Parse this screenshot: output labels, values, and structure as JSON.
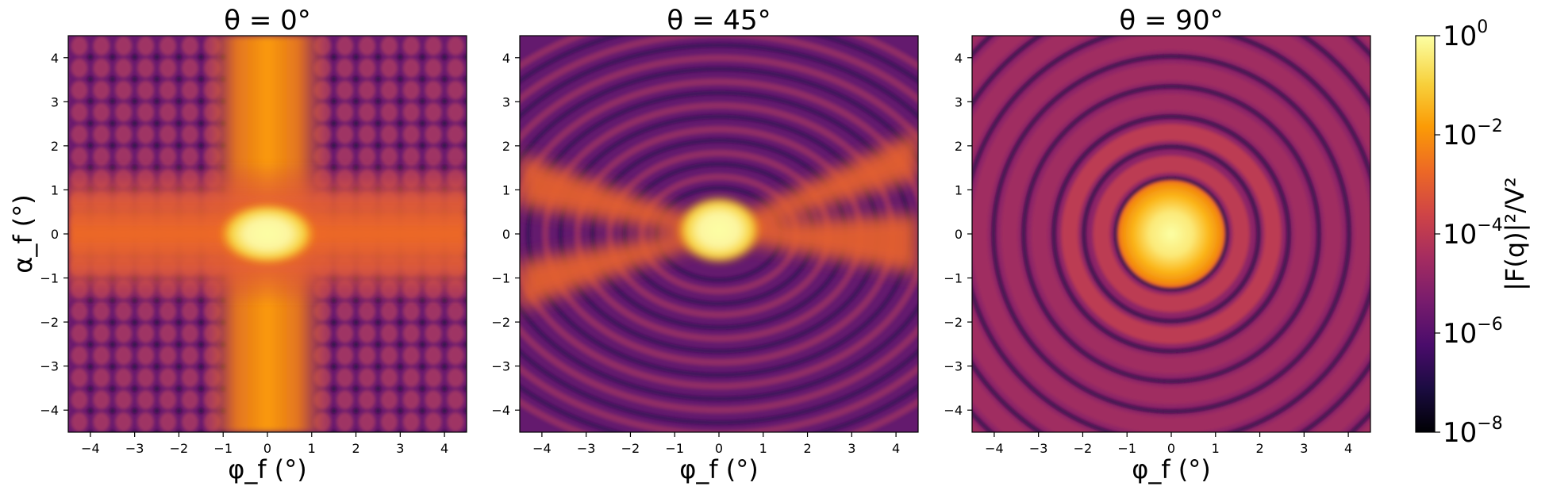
{
  "chart_data": [
    {
      "type": "heatmap",
      "panel": "theta-0",
      "title": "θ = 0°",
      "xlabel": "φ_f (°)",
      "ylabel": "α_f (°)",
      "xlim": [
        -4.5,
        4.5
      ],
      "ylim": [
        -4.5,
        4.5
      ],
      "xticks": [
        -4,
        -3,
        -2,
        -1,
        0,
        1,
        2,
        3,
        4
      ],
      "yticks": [
        -4,
        -3,
        -2,
        -1,
        0,
        1,
        2,
        3,
        4
      ],
      "pattern": "cross: bright vertical band along φf=0, horizontal band along αf=0, grid of lobes elsewhere; peak at origin",
      "colormap": "inferno",
      "grid": false
    },
    {
      "type": "heatmap",
      "panel": "theta-45",
      "title": "θ = 45°",
      "xlabel": "φ_f (°)",
      "ylabel": "",
      "xlim": [
        -4.5,
        4.5
      ],
      "ylim": [
        -4.5,
        4.5
      ],
      "xticks": [
        -4,
        -3,
        -2,
        -1,
        0,
        1,
        2,
        3,
        4
      ],
      "yticks": [
        -4,
        -3,
        -2,
        -1,
        0,
        1,
        2,
        3,
        4
      ],
      "pattern": "X-shaped streaks through origin with elliptical fringes above and below; peak at origin",
      "colormap": "inferno",
      "grid": false
    },
    {
      "type": "heatmap",
      "panel": "theta-90",
      "title": "θ = 90°",
      "xlabel": "φ_f (°)",
      "ylabel": "",
      "xlim": [
        -4.5,
        4.5
      ],
      "ylim": [
        -4.5,
        4.5
      ],
      "xticks": [
        -4,
        -3,
        -2,
        -1,
        0,
        1,
        2,
        3,
        4
      ],
      "yticks": [
        -4,
        -3,
        -2,
        -1,
        0,
        1,
        2,
        3,
        4
      ],
      "pattern": "concentric rings centred at origin (Airy-like), bright central disc",
      "colormap": "inferno",
      "grid": false
    }
  ],
  "colorbar": {
    "label": "|F(q)|²/V²",
    "scale": "log",
    "range": [
      1e-08,
      1
    ],
    "ticks": [
      {
        "value": 1,
        "label": "10",
        "exp": "0"
      },
      {
        "value": 0.01,
        "label": "10",
        "exp": "−2"
      },
      {
        "value": 0.0001,
        "label": "10",
        "exp": "−4"
      },
      {
        "value": 1e-06,
        "label": "10",
        "exp": "−6"
      },
      {
        "value": 1e-08,
        "label": "10",
        "exp": "−8"
      }
    ],
    "colors": [
      "#000004",
      "#1b0c41",
      "#4a0c6b",
      "#781c6d",
      "#a52c60",
      "#cf4446",
      "#ed6925",
      "#fb9b06",
      "#f7d13d",
      "#fcffa4"
    ]
  },
  "tick_minus": "−"
}
